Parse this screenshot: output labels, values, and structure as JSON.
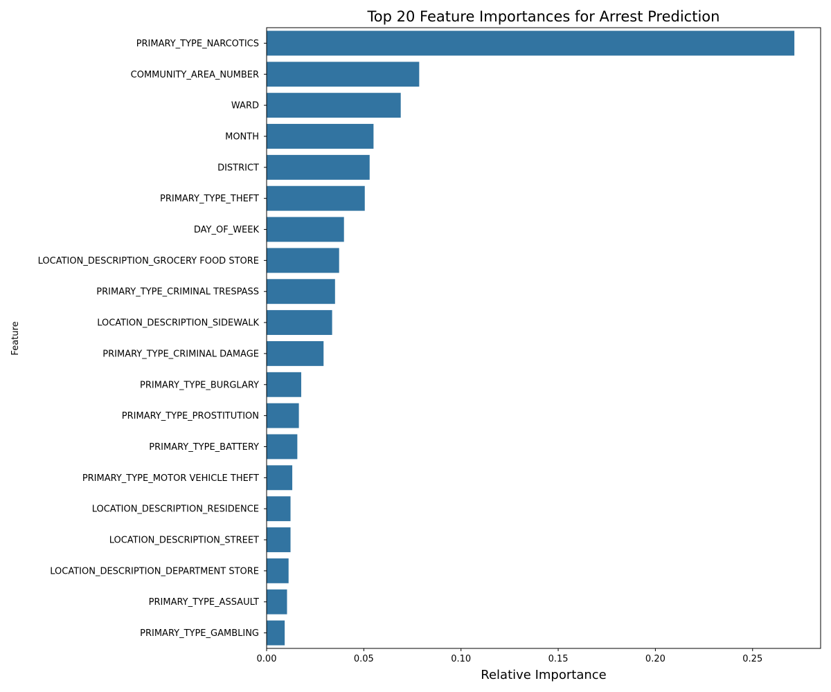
{
  "chart_data": {
    "type": "bar",
    "orientation": "horizontal",
    "title": "Top 20 Feature Importances for Arrest Prediction",
    "xlabel": "Relative Importance",
    "ylabel": "Feature",
    "xlim": [
      0,
      0.285
    ],
    "xticks": [
      0.0,
      0.05,
      0.1,
      0.15,
      0.2,
      0.25
    ],
    "xtick_labels": [
      "0.00",
      "0.05",
      "0.10",
      "0.15",
      "0.20",
      "0.25"
    ],
    "bar_color": "#3274a1",
    "grid": false,
    "categories": [
      "PRIMARY_TYPE_NARCOTICS",
      "COMMUNITY_AREA_NUMBER",
      "WARD",
      "MONTH",
      "DISTRICT",
      "PRIMARY_TYPE_THEFT",
      "DAY_OF_WEEK",
      "LOCATION_DESCRIPTION_GROCERY FOOD STORE",
      "PRIMARY_TYPE_CRIMINAL TRESPASS",
      "LOCATION_DESCRIPTION_SIDEWALK",
      "PRIMARY_TYPE_CRIMINAL DAMAGE",
      "PRIMARY_TYPE_BURGLARY",
      "PRIMARY_TYPE_PROSTITUTION",
      "PRIMARY_TYPE_BATTERY",
      "PRIMARY_TYPE_MOTOR VEHICLE THEFT",
      "LOCATION_DESCRIPTION_RESIDENCE",
      "LOCATION_DESCRIPTION_STREET",
      "LOCATION_DESCRIPTION_DEPARTMENT STORE",
      "PRIMARY_TYPE_ASSAULT",
      "PRIMARY_TYPE_GAMBLING"
    ],
    "values": [
      0.2715,
      0.0785,
      0.069,
      0.055,
      0.053,
      0.0505,
      0.0398,
      0.0373,
      0.0352,
      0.0337,
      0.0293,
      0.0178,
      0.0166,
      0.0158,
      0.0132,
      0.0123,
      0.0123,
      0.0113,
      0.0105,
      0.0093
    ]
  }
}
